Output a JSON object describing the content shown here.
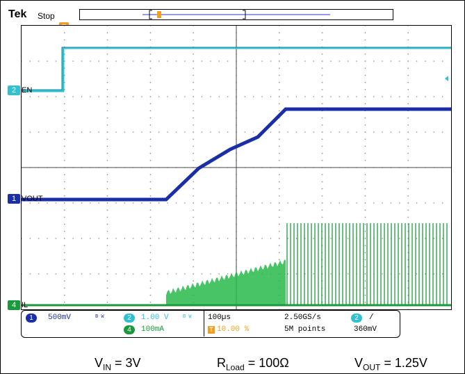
{
  "header": {
    "brand": "Tek",
    "acq_state": "Stop"
  },
  "channels": {
    "ch2_label": "EN",
    "ch1_label": "VOUT",
    "ch4_label": "IL",
    "ch1_num": "1",
    "ch2_num": "2",
    "ch4_num": "4"
  },
  "trigger": {
    "marker": "T"
  },
  "status_bar": {
    "ch1_scale": "500mV",
    "ch2_scale": "1.00 V",
    "ch4_scale": "100mA",
    "bw_mark": "B W",
    "timebase": "100µs",
    "sample_rate": "2.50GS/s",
    "trigger_pos": "10.00 %",
    "record_length": "5M points",
    "trigger_source": "2",
    "trigger_slope": "/",
    "trigger_level": "360mV"
  },
  "colors": {
    "ch1": "#1a2ea8",
    "ch2": "#30c0d0",
    "ch4": "#1a9a3a",
    "trigger": "#f0a020"
  },
  "conditions": {
    "vin_main": "V",
    "vin_sub": "IN",
    "vin_val": " = 3V",
    "rload_main": "R",
    "rload_sub": "Load",
    "rload_val": " = 100Ω",
    "vout_main": "V",
    "vout_sub": "OUT",
    "vout_val": " = 1.25V"
  }
}
